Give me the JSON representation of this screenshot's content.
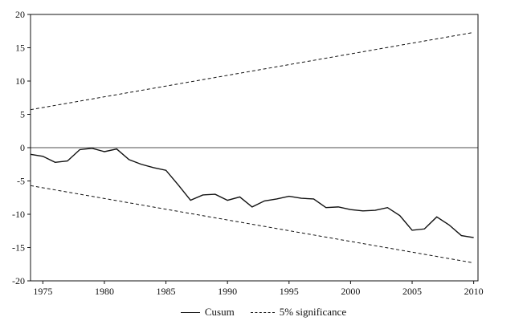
{
  "chart_data": {
    "type": "line",
    "title": "",
    "xlabel": "",
    "ylabel": "",
    "xlim": [
      1974,
      2010.35
    ],
    "ylim": [
      -20,
      20
    ],
    "x_ticks": [
      1975,
      1980,
      1985,
      1990,
      1995,
      2000,
      2005,
      2010
    ],
    "y_ticks": [
      -20,
      -15,
      -10,
      -5,
      0,
      5,
      10,
      15,
      20
    ],
    "grid": false,
    "zero_line": 0,
    "legend_position": "bottom",
    "legend": [
      {
        "label": "Cusum",
        "style": "solid"
      },
      {
        "label": "5% significance",
        "style": "dashed"
      }
    ],
    "series": [
      {
        "name": "Cusum",
        "style": "solid",
        "x": [
          1974,
          1975,
          1976,
          1977,
          1978,
          1979,
          1980,
          1981,
          1982,
          1983,
          1984,
          1985,
          1986,
          1987,
          1988,
          1989,
          1990,
          1991,
          1992,
          1993,
          1994,
          1995,
          1996,
          1997,
          1998,
          1999,
          2000,
          2001,
          2002,
          2003,
          2004,
          2005,
          2006,
          2007,
          2008,
          2009,
          2010
        ],
        "values": [
          -1.0,
          -1.3,
          -2.2,
          -2.0,
          -0.3,
          -0.1,
          -0.6,
          -0.2,
          -1.8,
          -2.5,
          -3.0,
          -3.4,
          -5.6,
          -7.9,
          -7.1,
          -7.0,
          -7.9,
          -7.4,
          -8.9,
          -8.0,
          -7.7,
          -7.3,
          -7.6,
          -7.7,
          -9.0,
          -8.9,
          -9.3,
          -9.5,
          -9.4,
          -9.0,
          -10.2,
          -12.4,
          -12.2,
          -10.4,
          -11.6,
          -13.2,
          -13.5
        ]
      },
      {
        "name": "5% significance upper",
        "style": "dashed",
        "x": [
          1974,
          2010
        ],
        "values": [
          5.7,
          17.3
        ]
      },
      {
        "name": "5% significance lower",
        "style": "dashed",
        "x": [
          1974,
          2010
        ],
        "values": [
          -5.7,
          -17.3
        ]
      }
    ]
  }
}
